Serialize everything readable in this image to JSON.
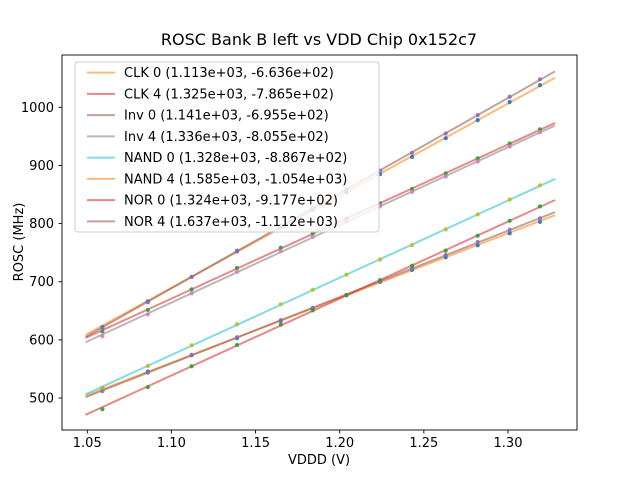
{
  "chart_data": {
    "type": "scatter",
    "title": "ROSC Bank B left vs VDD Chip 0x152c7",
    "xlabel": "VDDD (V)",
    "ylabel": "ROSC (MHz)",
    "grid": false,
    "legend_position": "upper left",
    "xlim": [
      1.035,
      1.341
    ],
    "ylim": [
      445,
      1090
    ],
    "xticks": [
      "1.05",
      "1.10",
      "1.15",
      "1.20",
      "1.25",
      "1.30"
    ],
    "yticks": [
      "500",
      "600",
      "700",
      "800",
      "900",
      "1000"
    ],
    "line_alpha": 0.55,
    "marker_alpha": 0.9,
    "fit_line_x_range": [
      1.049,
      1.328
    ],
    "x": [
      1.059,
      1.086,
      1.112,
      1.139,
      1.165,
      1.184,
      1.204,
      1.224,
      1.243,
      1.263,
      1.282,
      1.301,
      1.319
    ],
    "series": [
      {
        "name": "CLK 0",
        "label": "CLK 0 (1.113e+03, -6.636e+02)",
        "fit": {
          "slope": 1113,
          "intercept": -663.6
        },
        "line_color": "#ff7f0e",
        "marker_color": "#1f77b4",
        "y": [
          516.6,
          545.6,
          573.6,
          603.1,
          632.5,
          654.2,
          677.0,
          699.7,
          720.4,
          742.1,
          762.8,
          783.4,
          802.9
        ]
      },
      {
        "name": "CLK 4",
        "label": "CLK 4 (1.325e+03, -7.865e+02)",
        "fit": {
          "slope": 1325,
          "intercept": -786.5
        },
        "line_color": "#d62728",
        "marker_color": "#2ca02c",
        "y": [
          614.7,
          651.5,
          686.9,
          723.7,
          758.6,
          783.3,
          808.8,
          834.8,
          859.5,
          886.5,
          912.2,
          937.8,
          962.2
        ]
      },
      {
        "name": "Inv 0",
        "label": "Inv 0 (1.141e+03, -6.955e+02)",
        "fit": {
          "slope": 1141,
          "intercept": -695.5
        },
        "line_color": "#8c564b",
        "marker_color": "#9467bd",
        "y": [
          511.8,
          543.6,
          574.3,
          604.6,
          633.8,
          655.0,
          677.3,
          700.6,
          722.8,
          746.1,
          768.3,
          789.5,
          809.0
        ]
      },
      {
        "name": "Inv 4",
        "label": "Inv 4 (1.336e+03, -8.055e+02)",
        "fit": {
          "slope": 1336,
          "intercept": -805.5
        },
        "line_color": "#7f7f7f",
        "marker_color": "#e377c2",
        "y": [
          606.3,
          643.9,
          680.1,
          717.2,
          752.4,
          777.3,
          803.5,
          829.8,
          854.6,
          880.9,
          906.8,
          932.6,
          957.2
        ]
      },
      {
        "name": "NAND 0",
        "label": "NAND 0 (1.328e+03, -8.867e+02)",
        "fit": {
          "slope": 1328,
          "intercept": -886.7
        },
        "line_color": "#17becf",
        "marker_color": "#bcbd22",
        "y": [
          517.7,
          555.0,
          590.5,
          626.9,
          661.4,
          686.2,
          712.2,
          738.3,
          763.0,
          790.1,
          815.8,
          841.5,
          865.9
        ]
      },
      {
        "name": "NAND 4",
        "label": "NAND 4 (1.585e+03, -1.054e+03)",
        "fit": {
          "slope": 1585,
          "intercept": -1054
        },
        "line_color": "#ff7f0e",
        "marker_color": "#1f77b4",
        "y": [
          622.0,
          666.3,
          708.5,
          752.3,
          794.0,
          823.6,
          854.3,
          885.0,
          914.7,
          946.9,
          978.0,
          1009.1,
          1038.1
        ]
      },
      {
        "name": "NOR 0",
        "label": "NOR 0 (1.324e+03, -9.177e+02)",
        "fit": {
          "slope": 1324,
          "intercept": -917.7
        },
        "line_color": "#d62728",
        "marker_color": "#2ca02c",
        "y": [
          480.9,
          518.7,
          554.6,
          591.3,
          626.3,
          650.9,
          676.9,
          702.9,
          727.5,
          753.5,
          779.2,
          804.8,
          829.7
        ]
      },
      {
        "name": "NOR 4",
        "label": "NOR 4 (1.637e+03, -1.112e+03)",
        "fit": {
          "slope": 1637,
          "intercept": -1112
        },
        "line_color": "#8c564b",
        "marker_color": "#9467bd",
        "y": [
          619.6,
          664.8,
          708.3,
          753.5,
          796.6,
          827.2,
          859.0,
          891.2,
          921.8,
          955.0,
          986.6,
          1018.2,
          1048.2
        ]
      }
    ]
  }
}
